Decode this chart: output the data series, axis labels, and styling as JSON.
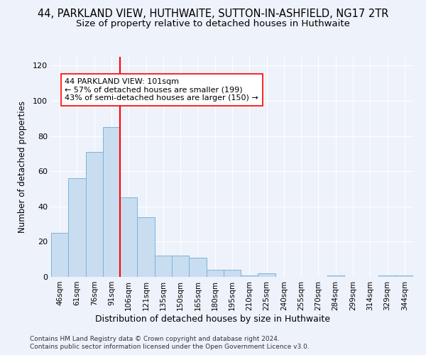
{
  "title": "44, PARKLAND VIEW, HUTHWAITE, SUTTON-IN-ASHFIELD, NG17 2TR",
  "subtitle": "Size of property relative to detached houses in Huthwaite",
  "xlabel": "Distribution of detached houses by size in Huthwaite",
  "ylabel": "Number of detached properties",
  "bar_color": "#c9ddf0",
  "bar_edge_color": "#7ab4dc",
  "categories": [
    "46sqm",
    "61sqm",
    "76sqm",
    "91sqm",
    "106sqm",
    "121sqm",
    "135sqm",
    "150sqm",
    "165sqm",
    "180sqm",
    "195sqm",
    "210sqm",
    "225sqm",
    "240sqm",
    "255sqm",
    "270sqm",
    "284sqm",
    "299sqm",
    "314sqm",
    "329sqm",
    "344sqm"
  ],
  "values": [
    25,
    56,
    71,
    85,
    45,
    34,
    12,
    12,
    11,
    4,
    4,
    1,
    2,
    0,
    0,
    0,
    1,
    0,
    0,
    1,
    1
  ],
  "vline_bar_index": 3.5,
  "vline_color": "red",
  "annotation_line1": "44 PARKLAND VIEW: 101sqm",
  "annotation_line2": "← 57% of detached houses are smaller (199)",
  "annotation_line3": "43% of semi-detached houses are larger (150) →",
  "ylim": [
    0,
    125
  ],
  "yticks": [
    0,
    20,
    40,
    60,
    80,
    100,
    120
  ],
  "footer1": "Contains HM Land Registry data © Crown copyright and database right 2024.",
  "footer2": "Contains public sector information licensed under the Open Government Licence v3.0.",
  "background_color": "#eef2fa",
  "grid_color": "#ffffff",
  "title_fontsize": 10.5,
  "subtitle_fontsize": 9.5,
  "annotation_fontsize": 8
}
